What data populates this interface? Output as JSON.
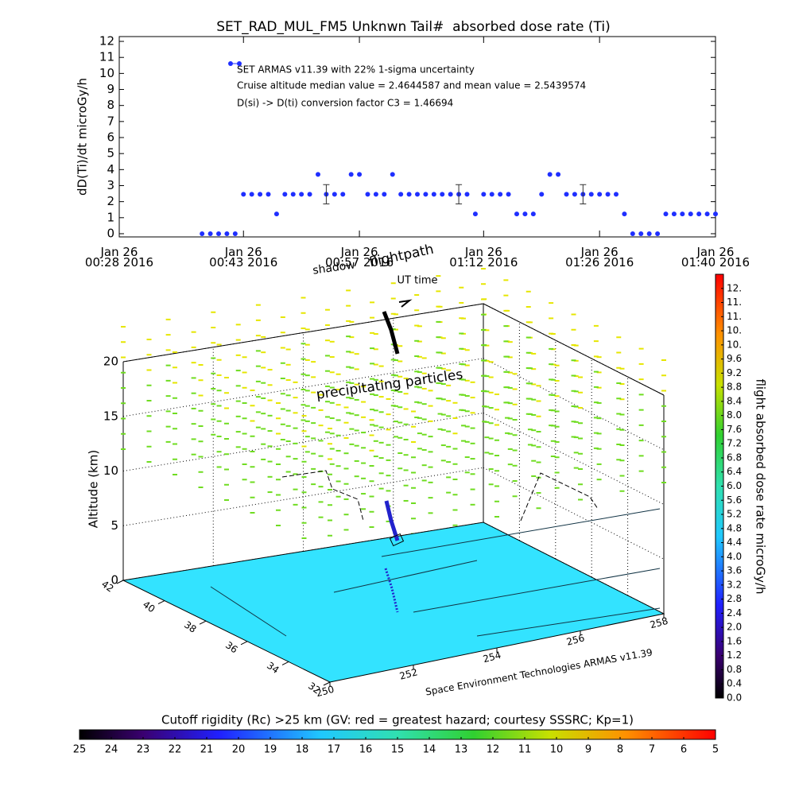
{
  "chart_data": [
    {
      "type": "line",
      "title": "SET_RAD_MUL_FM5 Unknwn Tail#  absorbed dose rate (Ti)",
      "y_label": "dD(Ti)/dt microGy/h",
      "x_label": "UT time",
      "annotations": [
        "SET ARMAS v11.39 with 22% 1-sigma uncertainty",
        "Cruise altitude median value = 2.4644587 and mean value = 2.5439574",
        "D(si) -> D(ti) conversion factor C3 = 1.46694"
      ],
      "color": "#1f2fff",
      "x": [
        "2016-01-26 00:38",
        "2016-01-26 00:39",
        "2016-01-26 00:40",
        "2016-01-26 00:41",
        "2016-01-26 00:42",
        "2016-01-26 00:43",
        "2016-01-26 00:44",
        "2016-01-26 00:45",
        "2016-01-26 00:46",
        "2016-01-26 00:47",
        "2016-01-26 00:48",
        "2016-01-26 00:49",
        "2016-01-26 00:50",
        "2016-01-26 00:51",
        "2016-01-26 00:52",
        "2016-01-26 00:53",
        "2016-01-26 00:54",
        "2016-01-26 00:55",
        "2016-01-26 00:56",
        "2016-01-26 00:57",
        "2016-01-26 00:58",
        "2016-01-26 00:59",
        "2016-01-26 01:00",
        "2016-01-26 01:01",
        "2016-01-26 01:02",
        "2016-01-26 01:03",
        "2016-01-26 01:04",
        "2016-01-26 01:05",
        "2016-01-26 01:06",
        "2016-01-26 01:07",
        "2016-01-26 01:08",
        "2016-01-26 01:09",
        "2016-01-26 01:10",
        "2016-01-26 01:11",
        "2016-01-26 01:12",
        "2016-01-26 01:13",
        "2016-01-26 01:14",
        "2016-01-26 01:15",
        "2016-01-26 01:16",
        "2016-01-26 01:17",
        "2016-01-26 01:18",
        "2016-01-26 01:19",
        "2016-01-26 01:20",
        "2016-01-26 01:21",
        "2016-01-26 01:22",
        "2016-01-26 01:23",
        "2016-01-26 01:24",
        "2016-01-26 01:25",
        "2016-01-26 01:26",
        "2016-01-26 01:27",
        "2016-01-26 01:28",
        "2016-01-26 01:29",
        "2016-01-26 01:30",
        "2016-01-26 01:31",
        "2016-01-26 01:32",
        "2016-01-26 01:33",
        "2016-01-26 01:34",
        "2016-01-26 01:35",
        "2016-01-26 01:36",
        "2016-01-26 01:37",
        "2016-01-26 01:38",
        "2016-01-26 01:39",
        "2016-01-26 01:40"
      ],
      "values": [
        0,
        0,
        0,
        0,
        0,
        2.46,
        2.46,
        2.46,
        2.46,
        1.23,
        2.46,
        2.46,
        2.46,
        2.46,
        3.7,
        2.46,
        2.46,
        2.46,
        3.7,
        3.7,
        2.46,
        2.46,
        2.46,
        3.7,
        2.46,
        2.46,
        2.46,
        2.46,
        2.46,
        2.46,
        2.46,
        2.46,
        2.46,
        1.23,
        2.46,
        2.46,
        2.46,
        2.46,
        1.23,
        1.23,
        1.23,
        2.46,
        3.7,
        3.7,
        2.46,
        2.46,
        2.46,
        2.46,
        2.46,
        2.46,
        2.46,
        1.23,
        0,
        0,
        0,
        0,
        1.23,
        1.23,
        1.23,
        1.23,
        1.23,
        1.23,
        1.23
      ],
      "errors": [
        null,
        null,
        null,
        null,
        null,
        null,
        null,
        null,
        null,
        null,
        null,
        null,
        null,
        null,
        null,
        0.6,
        null,
        null,
        null,
        null,
        null,
        null,
        null,
        null,
        null,
        null,
        null,
        null,
        null,
        null,
        null,
        0.6,
        null,
        null,
        null,
        null,
        null,
        null,
        null,
        null,
        null,
        null,
        null,
        null,
        null,
        null,
        0.6,
        null,
        null,
        null,
        null,
        null,
        null,
        null,
        null,
        null,
        null,
        null,
        null,
        null,
        null,
        null,
        null
      ],
      "xlim": [
        "2016-01-26 00:28",
        "2016-01-26 01:40"
      ],
      "xticks": [
        {
          "value": "2016-01-26 00:28",
          "label": "Jan 26\n00:28 2016"
        },
        {
          "value": "2016-01-26 00:43",
          "label": "Jan 26\n00:43 2016"
        },
        {
          "value": "2016-01-26 00:57",
          "label": "Jan 26\n00:57 2016"
        },
        {
          "value": "2016-01-26 01:12",
          "label": "Jan 26\n01:12 2016"
        },
        {
          "value": "2016-01-26 01:26",
          "label": "Jan 26\n01:26 2016"
        },
        {
          "value": "2016-01-26 01:40",
          "label": "Jan 26\n01:40 2016"
        }
      ],
      "ylim": [
        -0.2,
        12.3
      ],
      "yticks": [
        0,
        1,
        2,
        3,
        4,
        5,
        6,
        7,
        8,
        9,
        10,
        11,
        12
      ]
    },
    {
      "type": "box3d",
      "z_label": "Altitude (km)",
      "annotations": [
        "shadow",
        "flightpath",
        "precipitating particles"
      ],
      "footer": "Space Environment Technologies ARMAS v11.39",
      "xlim": [
        250,
        258
      ],
      "xticks": [
        250,
        252,
        254,
        256,
        258
      ],
      "ylim": [
        32,
        42
      ],
      "yticks": [
        32,
        34,
        36,
        38,
        40,
        42
      ],
      "zlim": [
        0,
        20
      ],
      "zticks": [
        0,
        5,
        10,
        15,
        20
      ],
      "floor_color": "#33e3ff"
    },
    {
      "type": "colorbar",
      "orientation": "vertical",
      "label": "flight absorbed dose rate microGy/h",
      "ylim": [
        0,
        12
      ],
      "yticks": [
        {
          "value": 0,
          "label": "0.0"
        },
        0.4,
        0.8,
        1.2,
        1.6,
        {
          "value": 2,
          "label": "2.0"
        },
        2.4,
        2.8,
        3.2,
        3.6,
        {
          "value": 4,
          "label": "4.0"
        },
        4.4,
        4.8,
        5.2,
        5.6,
        {
          "value": 6,
          "label": "6.0"
        },
        6.4,
        6.8,
        7.2,
        7.6,
        {
          "value": 8,
          "label": "8.0"
        },
        8.4,
        8.8,
        9.2,
        9.6,
        {
          "value": 10,
          "label": "10."
        },
        {
          "value": 10.4,
          "label": "10."
        },
        {
          "value": 10.8,
          "label": "11."
        },
        {
          "value": 11.2,
          "label": "11."
        },
        {
          "value": 11.6,
          "label": "12."
        }
      ]
    },
    {
      "type": "colorbar",
      "orientation": "horizontal",
      "title": "Cutoff rigidity (Rc) >25 km (GV: red = greatest hazard; courtesy SSSRC; Kp=1)",
      "xlim": [
        25,
        5
      ],
      "xticks": [
        25,
        24,
        23,
        22,
        21,
        20,
        19,
        18,
        17,
        16,
        15,
        14,
        13,
        12,
        11,
        10,
        9,
        8,
        7,
        6,
        5
      ]
    }
  ]
}
